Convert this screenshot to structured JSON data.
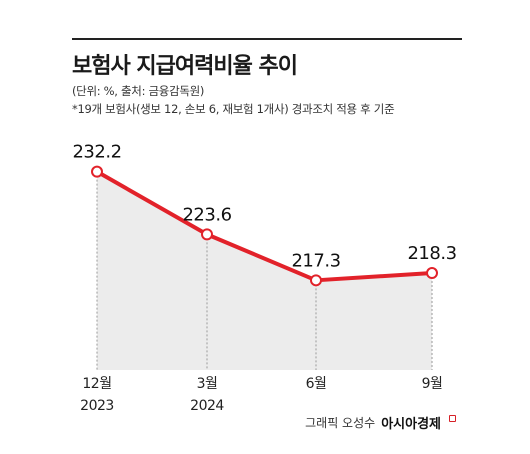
{
  "header": {
    "title": "보험사 지급여력비율 추이",
    "unit_source": "(단위: %, 출처: 금융감독원)",
    "note": "*19개 보험사(생보 12, 손보 6, 재보험 1개사) 경과조치 적용 후 기준"
  },
  "credit": {
    "author": "그래픽 오성수",
    "brand": "아시아경제"
  },
  "colors": {
    "line": "#e2222a",
    "area": "#ececec",
    "guide": "#9a9a9a"
  },
  "chart_data": {
    "type": "line",
    "categories": [
      {
        "line1": "12월",
        "line2": "2023"
      },
      {
        "line1": "3월",
        "line2": "2024"
      },
      {
        "line1": "6월",
        "line2": ""
      },
      {
        "line1": "9월",
        "line2": ""
      }
    ],
    "values": [
      232.2,
      223.6,
      217.3,
      218.3
    ],
    "value_labels": [
      "232.2",
      "223.6",
      "217.3",
      "218.3"
    ],
    "ylim": [
      205,
      233.8
    ],
    "grid": false,
    "fill_below": true
  }
}
